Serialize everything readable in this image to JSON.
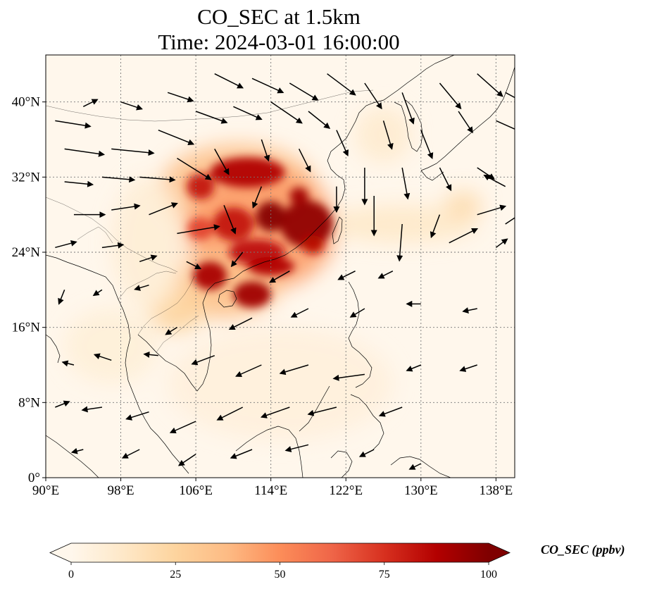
{
  "figure": {
    "title_line1": "CO_SEC at 1.5km",
    "title_line2": "Time: 2024-03-01 16:00:00"
  },
  "map": {
    "lon_range": [
      90,
      140
    ],
    "lat_range": [
      0,
      45
    ],
    "lon_ticks": [
      {
        "value": 90,
        "label": "90°E"
      },
      {
        "value": 98,
        "label": "98°E"
      },
      {
        "value": 106,
        "label": "106°E"
      },
      {
        "value": 114,
        "label": "114°E"
      },
      {
        "value": 122,
        "label": "122°E"
      },
      {
        "value": 130,
        "label": "130°E"
      },
      {
        "value": 138,
        "label": "138°E"
      }
    ],
    "lat_ticks": [
      {
        "value": 0,
        "label": "0°"
      },
      {
        "value": 8,
        "label": "8°N"
      },
      {
        "value": 16,
        "label": "16°N"
      },
      {
        "value": 24,
        "label": "24°N"
      },
      {
        "value": 32,
        "label": "32°N"
      },
      {
        "value": 40,
        "label": "40°N"
      }
    ],
    "gridlines": true
  },
  "colorbar": {
    "label": "CO_SEC (ppbv)",
    "min": 0,
    "max": 100,
    "extend": "both",
    "colormap": "OrRd",
    "ticks": [
      {
        "value": 0,
        "label": "0"
      },
      {
        "value": 25,
        "label": "25"
      },
      {
        "value": 50,
        "label": "50"
      },
      {
        "value": 75,
        "label": "75"
      },
      {
        "value": 100,
        "label": "100"
      }
    ],
    "stops": [
      "#fff7ec",
      "#fee8c8",
      "#fdd49e",
      "#fdbb84",
      "#fc8d59",
      "#ef6548",
      "#d7301f",
      "#b30000",
      "#7f0000"
    ]
  },
  "plumes": [
    {
      "lon": 110.5,
      "lat": 30.5,
      "rlon": 8.5,
      "rlat": 5.0,
      "value": 35
    },
    {
      "lon": 113.0,
      "lat": 26.5,
      "rlon": 8.0,
      "rlat": 6.5,
      "value": 45
    },
    {
      "lon": 109.0,
      "lat": 20.5,
      "rlon": 6.0,
      "rlat": 3.5,
      "value": 35
    },
    {
      "lon": 104.0,
      "lat": 18.0,
      "rlon": 3.0,
      "rlat": 2.5,
      "value": 25
    },
    {
      "lon": 128.0,
      "lat": 27.0,
      "rlon": 8.0,
      "rlat": 2.0,
      "value": 12
    },
    {
      "lon": 134.5,
      "lat": 29.0,
      "rlon": 2.0,
      "rlat": 1.5,
      "value": 20
    },
    {
      "lon": 101.0,
      "lat": 25.0,
      "rlon": 4.0,
      "rlat": 7.0,
      "value": 8
    },
    {
      "lon": 115.0,
      "lat": 10.0,
      "rlon": 12.0,
      "rlat": 6.0,
      "value": 6
    },
    {
      "lon": 126.0,
      "lat": 36.5,
      "rlon": 3.0,
      "rlat": 3.0,
      "value": 10
    },
    {
      "lon": 97.0,
      "lat": 14.0,
      "rlon": 5.0,
      "rlat": 4.0,
      "value": 7
    }
  ],
  "hotspots": [
    {
      "lon": 111.5,
      "lat": 32.5,
      "rlon": 4.0,
      "rlat": 1.6,
      "value": 88
    },
    {
      "lon": 106.5,
      "lat": 31.0,
      "rlon": 1.5,
      "rlat": 1.4,
      "value": 82
    },
    {
      "lon": 114.0,
      "lat": 27.8,
      "rlon": 1.6,
      "rlat": 1.6,
      "value": 98
    },
    {
      "lon": 117.8,
      "lat": 27.0,
      "rlon": 2.8,
      "rlat": 2.5,
      "value": 96
    },
    {
      "lon": 117.0,
      "lat": 30.0,
      "rlon": 1.0,
      "rlat": 0.9,
      "value": 92
    },
    {
      "lon": 110.0,
      "lat": 27.0,
      "rlon": 2.2,
      "rlat": 1.8,
      "value": 82
    },
    {
      "lon": 112.5,
      "lat": 24.0,
      "rlon": 3.0,
      "rlat": 1.4,
      "value": 84
    },
    {
      "lon": 107.5,
      "lat": 21.5,
      "rlon": 1.8,
      "rlat": 1.5,
      "value": 90
    },
    {
      "lon": 112.0,
      "lat": 19.5,
      "rlon": 2.0,
      "rlat": 1.4,
      "value": 92
    },
    {
      "lon": 114.0,
      "lat": 22.5,
      "rlon": 2.5,
      "rlat": 1.0,
      "value": 88
    },
    {
      "lon": 106.5,
      "lat": 26.5,
      "rlon": 1.4,
      "rlat": 1.2,
      "value": 70
    },
    {
      "lon": 118.5,
      "lat": 24.8,
      "rlon": 1.2,
      "rlat": 1.0,
      "value": 85
    }
  ],
  "wind_vectors": [
    {
      "lon": 91,
      "lat": 38,
      "u": 2.5,
      "v": -0.4
    },
    {
      "lon": 94,
      "lat": 39.5,
      "u": 1.0,
      "v": 0.5
    },
    {
      "lon": 98,
      "lat": 40,
      "u": 1.5,
      "v": -0.5
    },
    {
      "lon": 103,
      "lat": 41,
      "u": 1.8,
      "v": -0.6
    },
    {
      "lon": 108,
      "lat": 43,
      "u": 2.0,
      "v": -1.0
    },
    {
      "lon": 112,
      "lat": 42.5,
      "u": 2.2,
      "v": -1.0
    },
    {
      "lon": 116,
      "lat": 42,
      "u": 2.0,
      "v": -1.2
    },
    {
      "lon": 120,
      "lat": 43,
      "u": 2.0,
      "v": -1.5
    },
    {
      "lon": 124,
      "lat": 42,
      "u": 1.2,
      "v": -1.8
    },
    {
      "lon": 128,
      "lat": 41,
      "u": 0.8,
      "v": -2.2
    },
    {
      "lon": 132,
      "lat": 42,
      "u": 1.5,
      "v": -1.8
    },
    {
      "lon": 136,
      "lat": 43,
      "u": 1.8,
      "v": -1.6
    },
    {
      "lon": 139,
      "lat": 41,
      "u": 1.5,
      "v": -0.8
    },
    {
      "lon": 92,
      "lat": 35,
      "u": 2.8,
      "v": -0.4
    },
    {
      "lon": 97,
      "lat": 35,
      "u": 3.0,
      "v": -0.3
    },
    {
      "lon": 102,
      "lat": 37,
      "u": 2.5,
      "v": -1.0
    },
    {
      "lon": 106,
      "lat": 39,
      "u": 2.2,
      "v": -0.8
    },
    {
      "lon": 110,
      "lat": 39.5,
      "u": 2.0,
      "v": -0.9
    },
    {
      "lon": 114,
      "lat": 40,
      "u": 2.2,
      "v": -1.5
    },
    {
      "lon": 118,
      "lat": 39,
      "u": 1.5,
      "v": -1.2
    },
    {
      "lon": 121,
      "lat": 37,
      "u": 0.8,
      "v": -1.8
    },
    {
      "lon": 126,
      "lat": 38,
      "u": 0.6,
      "v": -2.0
    },
    {
      "lon": 130,
      "lat": 37,
      "u": 0.8,
      "v": -2.0
    },
    {
      "lon": 134,
      "lat": 39,
      "u": 1.0,
      "v": -1.5
    },
    {
      "lon": 138,
      "lat": 38,
      "u": 1.8,
      "v": -0.8
    },
    {
      "lon": 92,
      "lat": 31.5,
      "u": 2.0,
      "v": -0.2
    },
    {
      "lon": 96,
      "lat": 32,
      "u": 2.3,
      "v": -0.2
    },
    {
      "lon": 100,
      "lat": 32,
      "u": 2.5,
      "v": -0.2
    },
    {
      "lon": 104,
      "lat": 34,
      "u": 2.4,
      "v": -1.5
    },
    {
      "lon": 108,
      "lat": 35,
      "u": 1.0,
      "v": -1.8
    },
    {
      "lon": 113,
      "lat": 36,
      "u": 0.5,
      "v": -1.5
    },
    {
      "lon": 117,
      "lat": 35,
      "u": 0.8,
      "v": -1.6
    },
    {
      "lon": 124,
      "lat": 33,
      "u": 0.0,
      "v": -2.6
    },
    {
      "lon": 128,
      "lat": 33,
      "u": 0.4,
      "v": -2.2
    },
    {
      "lon": 132,
      "lat": 33,
      "u": 0.8,
      "v": -1.6
    },
    {
      "lon": 136,
      "lat": 33,
      "u": 1.2,
      "v": -0.8
    },
    {
      "lon": 139,
      "lat": 31,
      "u": -1.5,
      "v": 0.8
    },
    {
      "lon": 93,
      "lat": 28,
      "u": 2.2,
      "v": 0.0
    },
    {
      "lon": 97,
      "lat": 28.5,
      "u": 2.0,
      "v": 0.3
    },
    {
      "lon": 101,
      "lat": 28,
      "u": 2.0,
      "v": 0.8
    },
    {
      "lon": 104,
      "lat": 26,
      "u": 3.0,
      "v": 0.5
    },
    {
      "lon": 109,
      "lat": 29,
      "u": 0.8,
      "v": -2.0
    },
    {
      "lon": 113,
      "lat": 31,
      "u": -0.6,
      "v": -1.5
    },
    {
      "lon": 121,
      "lat": 31,
      "u": 0.0,
      "v": -1.8
    },
    {
      "lon": 125,
      "lat": 30,
      "u": 0.0,
      "v": -2.8
    },
    {
      "lon": 128,
      "lat": 27,
      "u": -0.2,
      "v": -2.6
    },
    {
      "lon": 132,
      "lat": 28,
      "u": -0.6,
      "v": -1.6
    },
    {
      "lon": 136,
      "lat": 28,
      "u": 2.0,
      "v": 0.6
    },
    {
      "lon": 139,
      "lat": 27,
      "u": 1.5,
      "v": 1.0
    },
    {
      "lon": 91,
      "lat": 24.5,
      "u": 1.5,
      "v": 0.4
    },
    {
      "lon": 96,
      "lat": 24.5,
      "u": 1.5,
      "v": 0.2
    },
    {
      "lon": 100,
      "lat": 23,
      "u": 1.2,
      "v": 0.4
    },
    {
      "lon": 105,
      "lat": 23,
      "u": 1.0,
      "v": -0.5
    },
    {
      "lon": 111,
      "lat": 24,
      "u": -0.8,
      "v": -1.0
    },
    {
      "lon": 116,
      "lat": 22,
      "u": -1.4,
      "v": -0.8
    },
    {
      "lon": 123,
      "lat": 22,
      "u": -1.2,
      "v": -0.6
    },
    {
      "lon": 127,
      "lat": 22,
      "u": -1.0,
      "v": -0.5
    },
    {
      "lon": 133,
      "lat": 25,
      "u": 2.0,
      "v": 1.0
    },
    {
      "lon": 138,
      "lat": 24.5,
      "u": 0.8,
      "v": 0.6
    },
    {
      "lon": 92,
      "lat": 20,
      "u": -0.4,
      "v": -1.0
    },
    {
      "lon": 96,
      "lat": 20,
      "u": -0.6,
      "v": -0.4
    },
    {
      "lon": 101,
      "lat": 20.5,
      "u": -1.0,
      "v": -0.3
    },
    {
      "lon": 104,
      "lat": 16,
      "u": -0.8,
      "v": -0.5
    },
    {
      "lon": 112,
      "lat": 17,
      "u": -1.6,
      "v": -0.8
    },
    {
      "lon": 118,
      "lat": 18,
      "u": -1.2,
      "v": -0.6
    },
    {
      "lon": 124,
      "lat": 18,
      "u": -1.0,
      "v": -0.6
    },
    {
      "lon": 130,
      "lat": 18.5,
      "u": -1.0,
      "v": 0.0
    },
    {
      "lon": 136,
      "lat": 18,
      "u": -1.0,
      "v": -0.2
    },
    {
      "lon": 93,
      "lat": 12,
      "u": -0.8,
      "v": 0.2
    },
    {
      "lon": 97,
      "lat": 12.5,
      "u": -1.2,
      "v": 0.4
    },
    {
      "lon": 102,
      "lat": 13,
      "u": -1.0,
      "v": 0.1
    },
    {
      "lon": 108,
      "lat": 13,
      "u": -1.6,
      "v": -0.6
    },
    {
      "lon": 113,
      "lat": 12,
      "u": -1.8,
      "v": -0.8
    },
    {
      "lon": 118,
      "lat": 12,
      "u": -2.0,
      "v": -0.6
    },
    {
      "lon": 124,
      "lat": 11,
      "u": -2.2,
      "v": -0.3
    },
    {
      "lon": 130,
      "lat": 12,
      "u": -1.0,
      "v": -0.4
    },
    {
      "lon": 136,
      "lat": 12,
      "u": -1.2,
      "v": -0.4
    },
    {
      "lon": 91,
      "lat": 7.5,
      "u": 1.0,
      "v": 0.4
    },
    {
      "lon": 96,
      "lat": 7.5,
      "u": -1.4,
      "v": -0.2
    },
    {
      "lon": 101,
      "lat": 7,
      "u": -1.6,
      "v": -0.5
    },
    {
      "lon": 106,
      "lat": 6,
      "u": -1.8,
      "v": -0.8
    },
    {
      "lon": 111,
      "lat": 7.5,
      "u": -1.8,
      "v": -0.9
    },
    {
      "lon": 116,
      "lat": 7.5,
      "u": -2.0,
      "v": -0.7
    },
    {
      "lon": 121,
      "lat": 7.5,
      "u": -2.0,
      "v": -0.5
    },
    {
      "lon": 128,
      "lat": 7.5,
      "u": -1.6,
      "v": -0.6
    },
    {
      "lon": 94,
      "lat": 3,
      "u": -0.8,
      "v": -0.2
    },
    {
      "lon": 100,
      "lat": 3,
      "u": -1.2,
      "v": -0.6
    },
    {
      "lon": 106,
      "lat": 2.5,
      "u": -1.2,
      "v": -0.8
    },
    {
      "lon": 112,
      "lat": 3,
      "u": -1.5,
      "v": -0.6
    },
    {
      "lon": 118,
      "lat": 3.5,
      "u": -1.6,
      "v": -0.4
    },
    {
      "lon": 125,
      "lat": 3,
      "u": -1.0,
      "v": -0.5
    },
    {
      "lon": 130,
      "lat": 1.5,
      "u": -0.8,
      "v": -0.4
    }
  ]
}
